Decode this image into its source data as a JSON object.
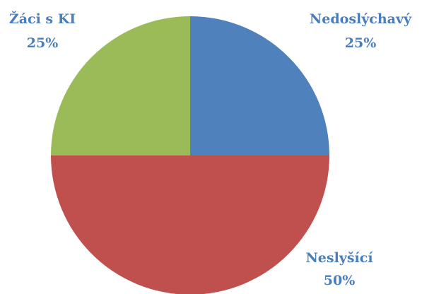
{
  "chart_data": {
    "type": "pie",
    "categories": [
      "Nedoslýchavý",
      "Neslyšící",
      "Žáci s KI"
    ],
    "values": [
      25,
      50,
      25
    ],
    "value_labels": [
      "25%",
      "50%",
      "25%"
    ],
    "colors": [
      "#4f81bd",
      "#c0504d",
      "#9bbb59"
    ]
  }
}
